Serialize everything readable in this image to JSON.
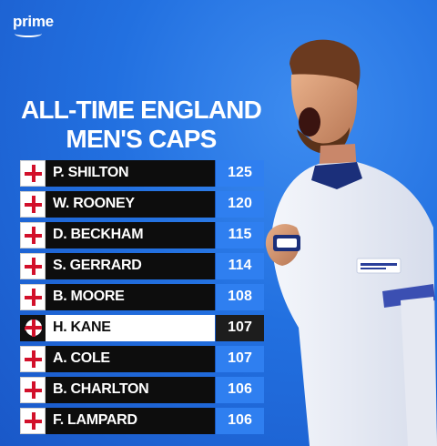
{
  "brand": {
    "name": "prime"
  },
  "title": {
    "line1": "ALL-TIME ENGLAND",
    "line2": "MEN'S CAPS"
  },
  "colors": {
    "background": "#2270e0",
    "name_cell": "#0d0d0d",
    "caps_cell": "#2f7ff0",
    "flag_red": "#d2102a",
    "highlight_name_cell": "#ffffff"
  },
  "table": {
    "rows": [
      {
        "name": "P. SHILTON",
        "caps": "125",
        "highlight": false
      },
      {
        "name": "W. ROONEY",
        "caps": "120",
        "highlight": false
      },
      {
        "name": "D. BECKHAM",
        "caps": "115",
        "highlight": false
      },
      {
        "name": "S. GERRARD",
        "caps": "114",
        "highlight": false
      },
      {
        "name": "B. MOORE",
        "caps": "108",
        "highlight": false
      },
      {
        "name": "H. KANE",
        "caps": "107",
        "highlight": true
      },
      {
        "name": "A. COLE",
        "caps": "107",
        "highlight": false
      },
      {
        "name": "B. CHARLTON",
        "caps": "106",
        "highlight": false
      },
      {
        "name": "F. LAMPARD",
        "caps": "106",
        "highlight": false
      }
    ]
  },
  "icons": {
    "flag": "england-flag-icon",
    "ball": "england-football-icon"
  }
}
